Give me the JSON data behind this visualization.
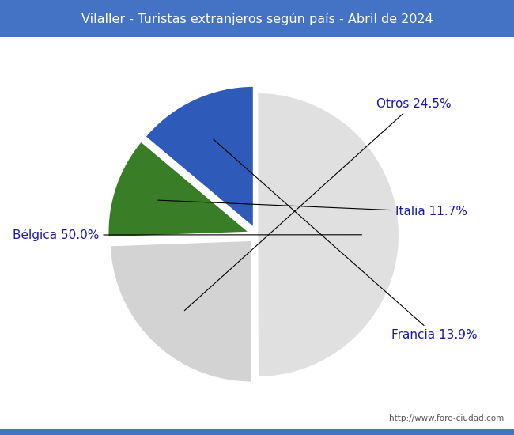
{
  "title": "Vilaller - Turistas extranjeros según país - Abril de 2024",
  "title_bg_color": "#4472c4",
  "title_text_color": "#ffffff",
  "watermark": "http://www.foro-ciudad.com",
  "labels": [
    "Bélgica",
    "Otros",
    "Italia",
    "Francia"
  ],
  "values": [
    50.0,
    24.5,
    11.7,
    13.9
  ],
  "colors": [
    "#e0e0e0",
    "#d3d3d3",
    "#3a7d27",
    "#2e5bba"
  ],
  "explode": [
    0.0,
    0.05,
    0.05,
    0.05
  ],
  "startangle": 90,
  "label_color": "#1a1aaa",
  "label_fontsize": 11
}
